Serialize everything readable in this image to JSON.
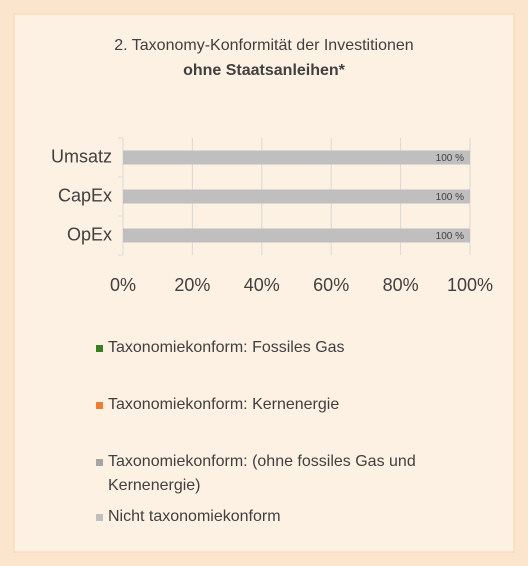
{
  "chart_data": {
    "type": "stacked_barh",
    "title": "2. Taxonomy-Konformität der Investitionen",
    "subtitle": "ohne Staatsanleihen*",
    "categories": [
      "Umsatz",
      "CapEx",
      "OpEx"
    ],
    "series": [
      {
        "name": "Taxonomiekonform: Fossiles Gas",
        "color": "#3b7d23",
        "values": [
          0,
          0,
          0
        ]
      },
      {
        "name": "Taxonomiekonform: Kernenergie",
        "color": "#ed7d31",
        "values": [
          0,
          0,
          0
        ]
      },
      {
        "name": "Taxonomiekonform: (ohne fossiles Gas und Kernenergie)",
        "color": "#a5a5a5",
        "values": [
          0,
          0,
          0
        ]
      },
      {
        "name": "Nicht taxonomiekonform",
        "color": "#bfbfbf",
        "values": [
          100,
          100,
          100
        ],
        "value_labels": [
          "100 %",
          "100 %",
          "100 %"
        ]
      }
    ],
    "xlim": [
      0,
      100
    ],
    "xticks": [
      {
        "value": 0,
        "label": "0%"
      },
      {
        "value": 20,
        "label": "20%"
      },
      {
        "value": 40,
        "label": "40%"
      },
      {
        "value": 60,
        "label": "60%"
      },
      {
        "value": 80,
        "label": "80%"
      },
      {
        "value": 100,
        "label": "100%"
      }
    ],
    "grid": true
  }
}
